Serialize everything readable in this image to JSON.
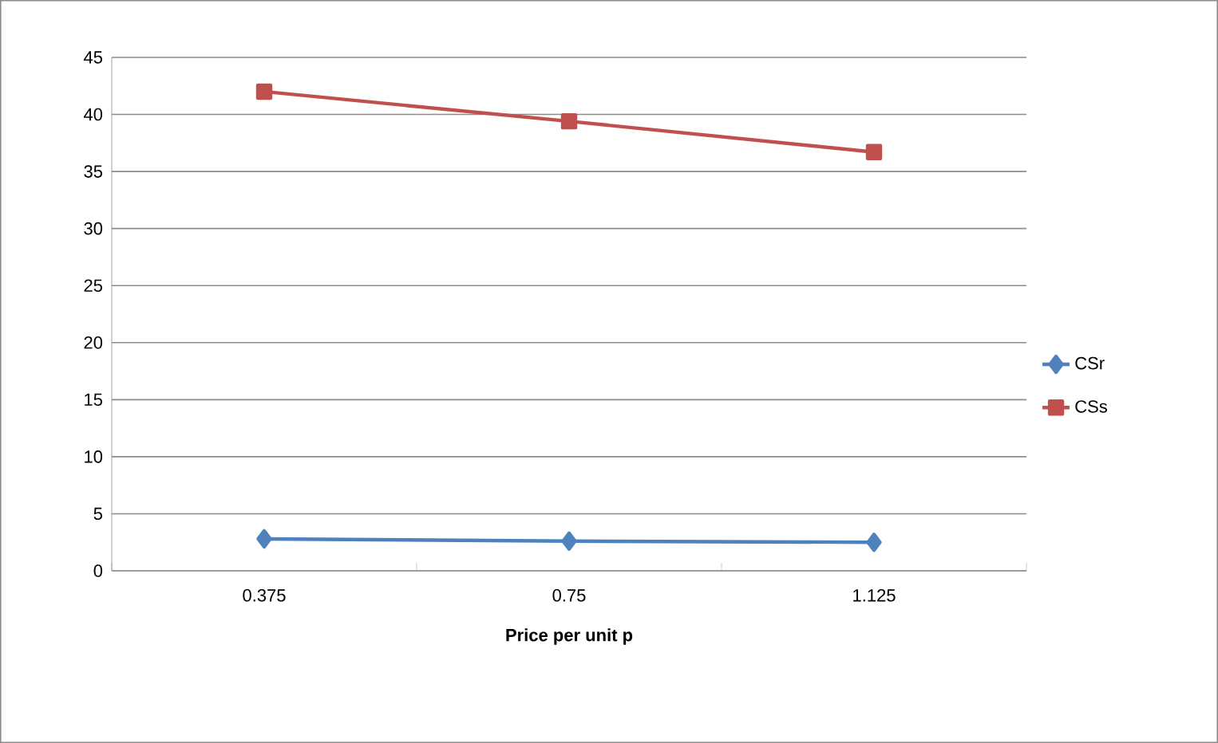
{
  "chart_data": {
    "type": "line",
    "xlabel": "Price per unit p",
    "categories": [
      "0.375",
      "0.75",
      "1.125"
    ],
    "series": [
      {
        "name": "CSr",
        "color": "#4f81bd",
        "marker": "diamond",
        "values": [
          2.8,
          2.6,
          2.5
        ]
      },
      {
        "name": "CSs",
        "color": "#c0504d",
        "marker": "square",
        "values": [
          42.0,
          39.4,
          36.7
        ]
      }
    ],
    "ylim": [
      0,
      45
    ],
    "yticks": [
      0,
      5,
      10,
      15,
      20,
      25,
      30,
      35,
      40,
      45
    ],
    "grid": "y",
    "legend": "right"
  }
}
